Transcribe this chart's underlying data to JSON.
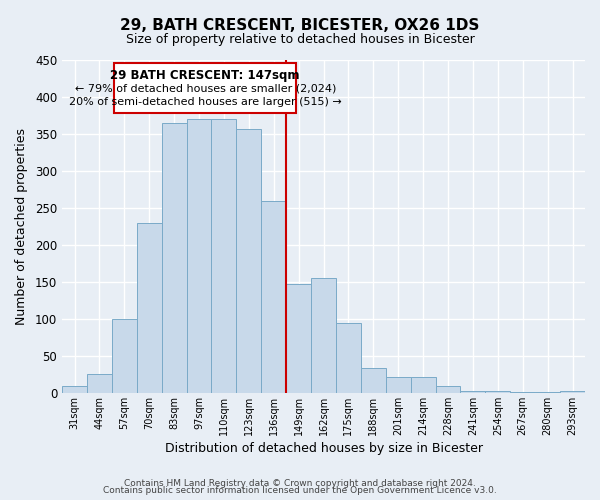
{
  "title": "29, BATH CRESCENT, BICESTER, OX26 1DS",
  "subtitle": "Size of property relative to detached houses in Bicester",
  "xlabel": "Distribution of detached houses by size in Bicester",
  "ylabel": "Number of detached properties",
  "bar_color": "#c8d9ea",
  "bar_edge_color": "#7aaac8",
  "categories": [
    "31sqm",
    "44sqm",
    "57sqm",
    "70sqm",
    "83sqm",
    "97sqm",
    "110sqm",
    "123sqm",
    "136sqm",
    "149sqm",
    "162sqm",
    "175sqm",
    "188sqm",
    "201sqm",
    "214sqm",
    "228sqm",
    "241sqm",
    "254sqm",
    "267sqm",
    "280sqm",
    "293sqm"
  ],
  "values": [
    10,
    25,
    100,
    230,
    365,
    370,
    370,
    357,
    260,
    147,
    155,
    95,
    33,
    22,
    22,
    10,
    3,
    2,
    1,
    1,
    2
  ],
  "vline_color": "#cc0000",
  "annotation_title": "29 BATH CRESCENT: 147sqm",
  "annotation_line1": "← 79% of detached houses are smaller (2,024)",
  "annotation_line2": "20% of semi-detached houses are larger (515) →",
  "annotation_box_color": "#ffffff",
  "annotation_box_edge": "#cc0000",
  "ylim": [
    0,
    450
  ],
  "yticks": [
    0,
    50,
    100,
    150,
    200,
    250,
    300,
    350,
    400,
    450
  ],
  "footer1": "Contains HM Land Registry data © Crown copyright and database right 2024.",
  "footer2": "Contains public sector information licensed under the Open Government Licence v3.0.",
  "background_color": "#e8eef5",
  "plot_bg_color": "#e8eef5",
  "grid_color": "#ffffff",
  "title_fontsize": 11,
  "subtitle_fontsize": 9
}
